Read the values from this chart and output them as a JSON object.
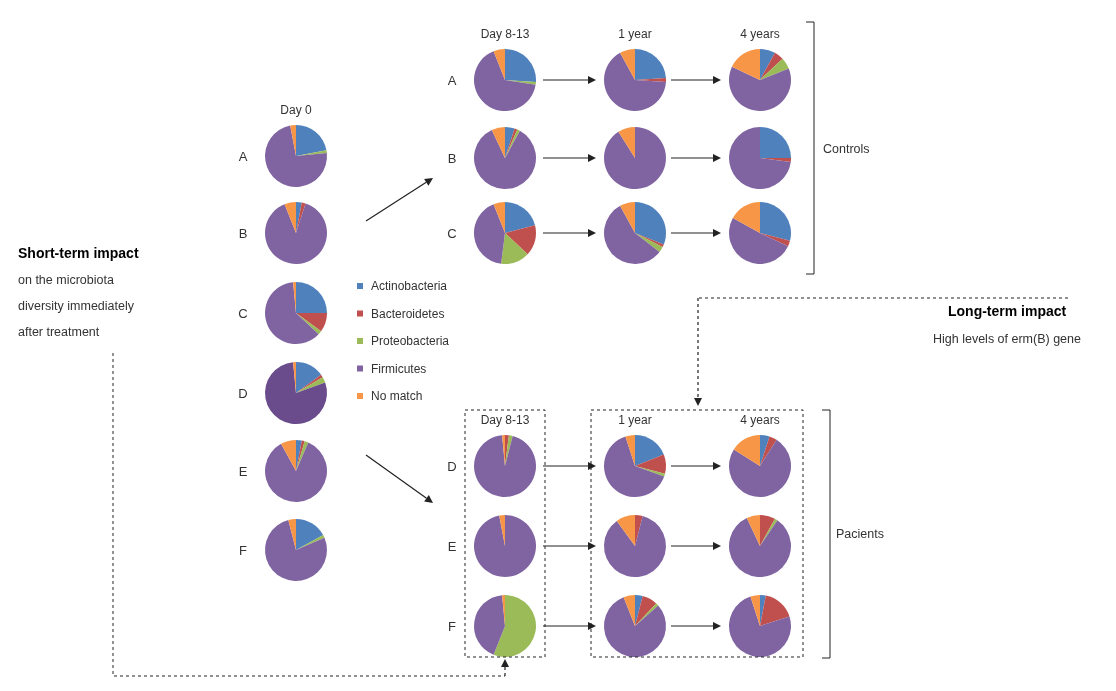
{
  "chart_data": [
    {
      "type": "pie",
      "title": "Day 0",
      "ylabel": "A",
      "values": [
        22,
        null,
        1.5,
        73.5,
        3
      ],
      "colors": [
        "#4f81bd",
        null,
        "#9bbb59",
        "#8064a2",
        "#f79646"
      ]
    },
    {
      "type": "pie",
      "ylabel": "B",
      "values": [
        3,
        2,
        null,
        89,
        6
      ],
      "colors": [
        "#4f81bd",
        "#c0504d",
        null,
        "#8064a2",
        "#f79646"
      ]
    },
    {
      "type": "pie",
      "ylabel": "C",
      "categories": [
        "Actinobacteria",
        "Bacteroidetes",
        "Proteobacteria",
        "Firmicutes",
        "No match"
      ],
      "values": [
        25,
        10,
        2,
        61.5,
        1.5
      ],
      "colors": [
        "#4f81bd",
        "#c0504d",
        "#9bbb59",
        "#8064a2",
        "#f79646"
      ],
      "legend": "right"
    },
    {
      "type": "pie",
      "ylabel": "D",
      "values": [
        15,
        1.5,
        3,
        79,
        1.5
      ],
      "colors": [
        "#4f81bd",
        "#c0504d",
        "#9bbb59",
        "#6a4c8c",
        "#f79646"
      ]
    },
    {
      "type": "pie",
      "ylabel": "E",
      "values": [
        3,
        1.5,
        2,
        85.5,
        8
      ],
      "colors": [
        "#4f81bd",
        "#c0504d",
        "#9bbb59",
        "#8064a2",
        "#f79646"
      ]
    },
    {
      "type": "pie",
      "ylabel": "F",
      "values": [
        17,
        null,
        1.5,
        77.5,
        4
      ],
      "colors": [
        "#4f81bd",
        null,
        "#9bbb59",
        "#8064a2",
        "#f79646"
      ]
    },
    {
      "type": "pie",
      "title": "Day 8-13",
      "ylabel": "A",
      "values": [
        26,
        null,
        1.5,
        66.5,
        6
      ],
      "colors": [
        "#4f81bd",
        null,
        "#9bbb59",
        "#8064a2",
        "#f79646"
      ]
    },
    {
      "type": "pie",
      "ylabel": "B",
      "values": [
        5,
        1.5,
        1.5,
        85,
        7
      ],
      "colors": [
        "#4f81bd",
        "#c0504d",
        "#9bbb59",
        "#8064a2",
        "#f79646"
      ]
    },
    {
      "type": "pie",
      "ylabel": "C",
      "values": [
        21,
        16,
        15,
        42,
        6
      ],
      "colors": [
        "#4f81bd",
        "#c0504d",
        "#9bbb59",
        "#8064a2",
        "#f79646"
      ]
    },
    {
      "type": "pie",
      "title": "1 year",
      "values": [
        24,
        2,
        null,
        66,
        8
      ],
      "colors": [
        "#4f81bd",
        "#c0504d",
        null,
        "#8064a2",
        "#f79646"
      ]
    },
    {
      "type": "pie",
      "values": [
        null,
        null,
        null,
        91,
        9
      ],
      "colors": [
        null,
        null,
        null,
        "#8064a2",
        "#f79646"
      ]
    },
    {
      "type": "pie",
      "values": [
        31,
        1.5,
        3,
        56.5,
        8
      ],
      "colors": [
        "#4f81bd",
        "#c0504d",
        "#9bbb59",
        "#8064a2",
        "#f79646"
      ]
    },
    {
      "type": "pie",
      "title": "4 years",
      "values": [
        8,
        5,
        6,
        63,
        18
      ],
      "colors": [
        "#4f81bd",
        "#c0504d",
        "#9bbb59",
        "#8064a2",
        "#f79646"
      ]
    },
    {
      "type": "pie",
      "values": [
        25,
        2,
        null,
        73,
        null
      ],
      "colors": [
        "#4f81bd",
        "#c0504d",
        null,
        "#8064a2",
        null
      ]
    },
    {
      "type": "pie",
      "values": [
        29,
        3,
        null,
        51,
        17
      ],
      "colors": [
        "#4f81bd",
        "#c0504d",
        null,
        "#8064a2",
        "#f79646"
      ]
    },
    {
      "type": "pie",
      "title": "Day 8-13",
      "ylabel": "D",
      "values": [
        null,
        2,
        2,
        94.5,
        1.5
      ],
      "colors": [
        null,
        "#c0504d",
        "#9bbb59",
        "#8064a2",
        "#f79646"
      ]
    },
    {
      "type": "pie",
      "ylabel": "E",
      "values": [
        null,
        null,
        null,
        97,
        3
      ],
      "colors": [
        null,
        null,
        null,
        "#8064a2",
        "#f79646"
      ]
    },
    {
      "type": "pie",
      "ylabel": "F",
      "values": [
        null,
        null,
        56,
        42.5,
        1.5
      ],
      "colors": [
        null,
        null,
        "#9bbb59",
        "#8064a2",
        "#f79646"
      ]
    },
    {
      "type": "pie",
      "title": "1 year",
      "values": [
        19,
        10,
        1.5,
        64.5,
        5
      ],
      "colors": [
        "#4f81bd",
        "#c0504d",
        "#9bbb59",
        "#8064a2",
        "#f79646"
      ]
    },
    {
      "type": "pie",
      "values": [
        null,
        4,
        null,
        86,
        10
      ],
      "colors": [
        null,
        "#c0504d",
        null,
        "#8064a2",
        "#f79646"
      ]
    },
    {
      "type": "pie",
      "values": [
        4,
        8,
        1.5,
        80.5,
        6
      ],
      "colors": [
        "#4f81bd",
        "#c0504d",
        "#9bbb59",
        "#8064a2",
        "#f79646"
      ]
    },
    {
      "type": "pie",
      "title": "4 years",
      "values": [
        5,
        4,
        null,
        75,
        16
      ],
      "colors": [
        "#4f81bd",
        "#c0504d",
        null,
        "#8064a2",
        "#f79646"
      ]
    },
    {
      "type": "pie",
      "values": [
        null,
        8,
        1.5,
        83.5,
        7
      ],
      "colors": [
        null,
        "#c0504d",
        "#9bbb59",
        "#8064a2",
        "#f79646"
      ]
    },
    {
      "type": "pie",
      "values": [
        3,
        17,
        null,
        75,
        5
      ],
      "colors": [
        "#4f81bd",
        "#c0504d",
        null,
        "#8064a2",
        "#f79646"
      ]
    },
    {
      "type": "other",
      "annotations": [
        "Short-term impact",
        "on the microbiota",
        "diversity immediately",
        "after treatment",
        "Long-term impact",
        "High levels of erm(B) gene",
        "Controls",
        "Pacients"
      ]
    }
  ]
}
